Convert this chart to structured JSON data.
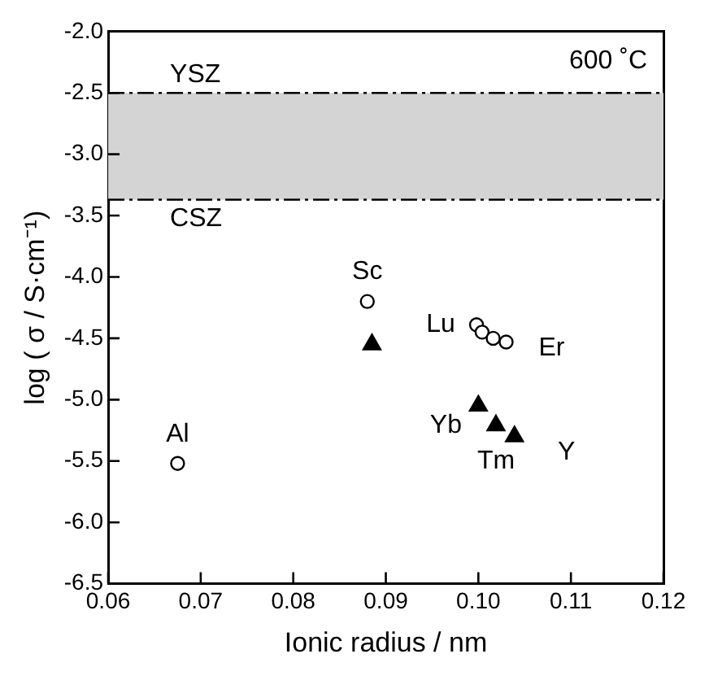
{
  "chart_data": {
    "type": "scatter",
    "xlabel": "Ionic radius / nm",
    "ylabel": "log ( σ / S·cm⁻¹)",
    "xlim": [
      0.06,
      0.12
    ],
    "xticks": [
      0.06,
      0.07,
      0.08,
      0.09,
      {
        "value": 0.1,
        "label": "0.10"
      },
      0.11,
      0.12
    ],
    "ylim": [
      -6.5,
      -2
    ],
    "yticks": [
      {
        "value": -6.5,
        "label": "-6.5"
      },
      {
        "value": -6,
        "label": "-6.0"
      },
      {
        "value": -5.5,
        "label": "-5.5"
      },
      {
        "value": -5,
        "label": "-5.0"
      },
      {
        "value": -4.5,
        "label": "-4.5"
      },
      {
        "value": -4,
        "label": "-4.0"
      },
      {
        "value": -3.5,
        "label": "-3.5"
      },
      {
        "value": -3,
        "label": "-3.0"
      },
      {
        "value": -2.5,
        "label": "-2.5"
      },
      {
        "value": -2,
        "label": "-2.0"
      }
    ],
    "series": [
      {
        "color": "#000000",
        "marker": "circle",
        "x": [
          0.0675,
          0.088,
          0.0998,
          0.1004,
          0.1016,
          0.103
        ],
        "values": [
          -5.52,
          -4.2,
          -4.39,
          -4.45,
          -4.5,
          -4.53
        ]
      },
      {
        "color": "#000000",
        "marker": "triangle",
        "x": [
          0.0885,
          0.1,
          0.1019,
          0.1039
        ],
        "values": [
          -4.55,
          -5.05,
          -5.21,
          -5.3
        ]
      }
    ],
    "bands": [
      {
        "axis": "y",
        "from": -3.37,
        "to": -2.5,
        "color": "#d4d4d4"
      }
    ],
    "ref_lines": [
      {
        "axis": "y",
        "value": -2.5,
        "label": "YSZ",
        "line_style": "dashed"
      },
      {
        "axis": "y",
        "value": -3.37,
        "label": "CSZ",
        "line_style": "dashed"
      }
    ],
    "annotations": [
      "600 ˚C",
      {
        "text": "Al",
        "x": 0.0675,
        "y": -5.52
      },
      {
        "text": "Sc",
        "x": 0.088,
        "y": -4.2
      },
      {
        "text": "Lu",
        "x": 0.0998,
        "y": -4.39
      },
      {
        "text": "Er",
        "x": 0.103,
        "y": -4.53
      },
      {
        "text": "Yb",
        "x": 0.1,
        "y": -5.05
      },
      {
        "text": "Tm",
        "x": 0.1019,
        "y": -5.21
      },
      {
        "text": "Y",
        "x": 0.1039,
        "y": -5.3
      }
    ],
    "grid": false,
    "legend": false
  }
}
